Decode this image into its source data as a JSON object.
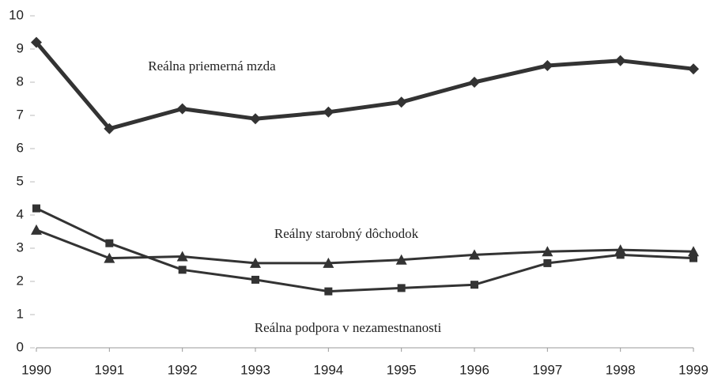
{
  "chart_data": {
    "type": "line",
    "categories": [
      "1990",
      "1991",
      "1992",
      "1993",
      "1994",
      "1995",
      "1996",
      "1997",
      "1998",
      "1999"
    ],
    "series": [
      {
        "name": "Reálna priemerná mzda",
        "color": "#333333",
        "marker": "diamond",
        "values": [
          9.2,
          6.6,
          7.2,
          6.9,
          7.1,
          7.4,
          8.0,
          8.5,
          8.65,
          8.4
        ]
      },
      {
        "name": "Reálny starobný dôchodok",
        "color": "#333333",
        "marker": "triangle",
        "values": [
          3.55,
          2.7,
          2.75,
          2.55,
          2.55,
          2.65,
          2.8,
          2.9,
          2.95,
          2.9
        ]
      },
      {
        "name": "Reálna podpora v nezamestnanosti",
        "color": "#333333",
        "marker": "square",
        "values": [
          4.2,
          3.15,
          2.35,
          2.05,
          1.7,
          1.8,
          1.9,
          2.55,
          2.8,
          2.7
        ]
      }
    ],
    "ylim": [
      0,
      10
    ],
    "yticks": [
      0,
      1,
      2,
      3,
      4,
      5,
      6,
      7,
      8,
      9,
      10
    ],
    "grid": false
  }
}
